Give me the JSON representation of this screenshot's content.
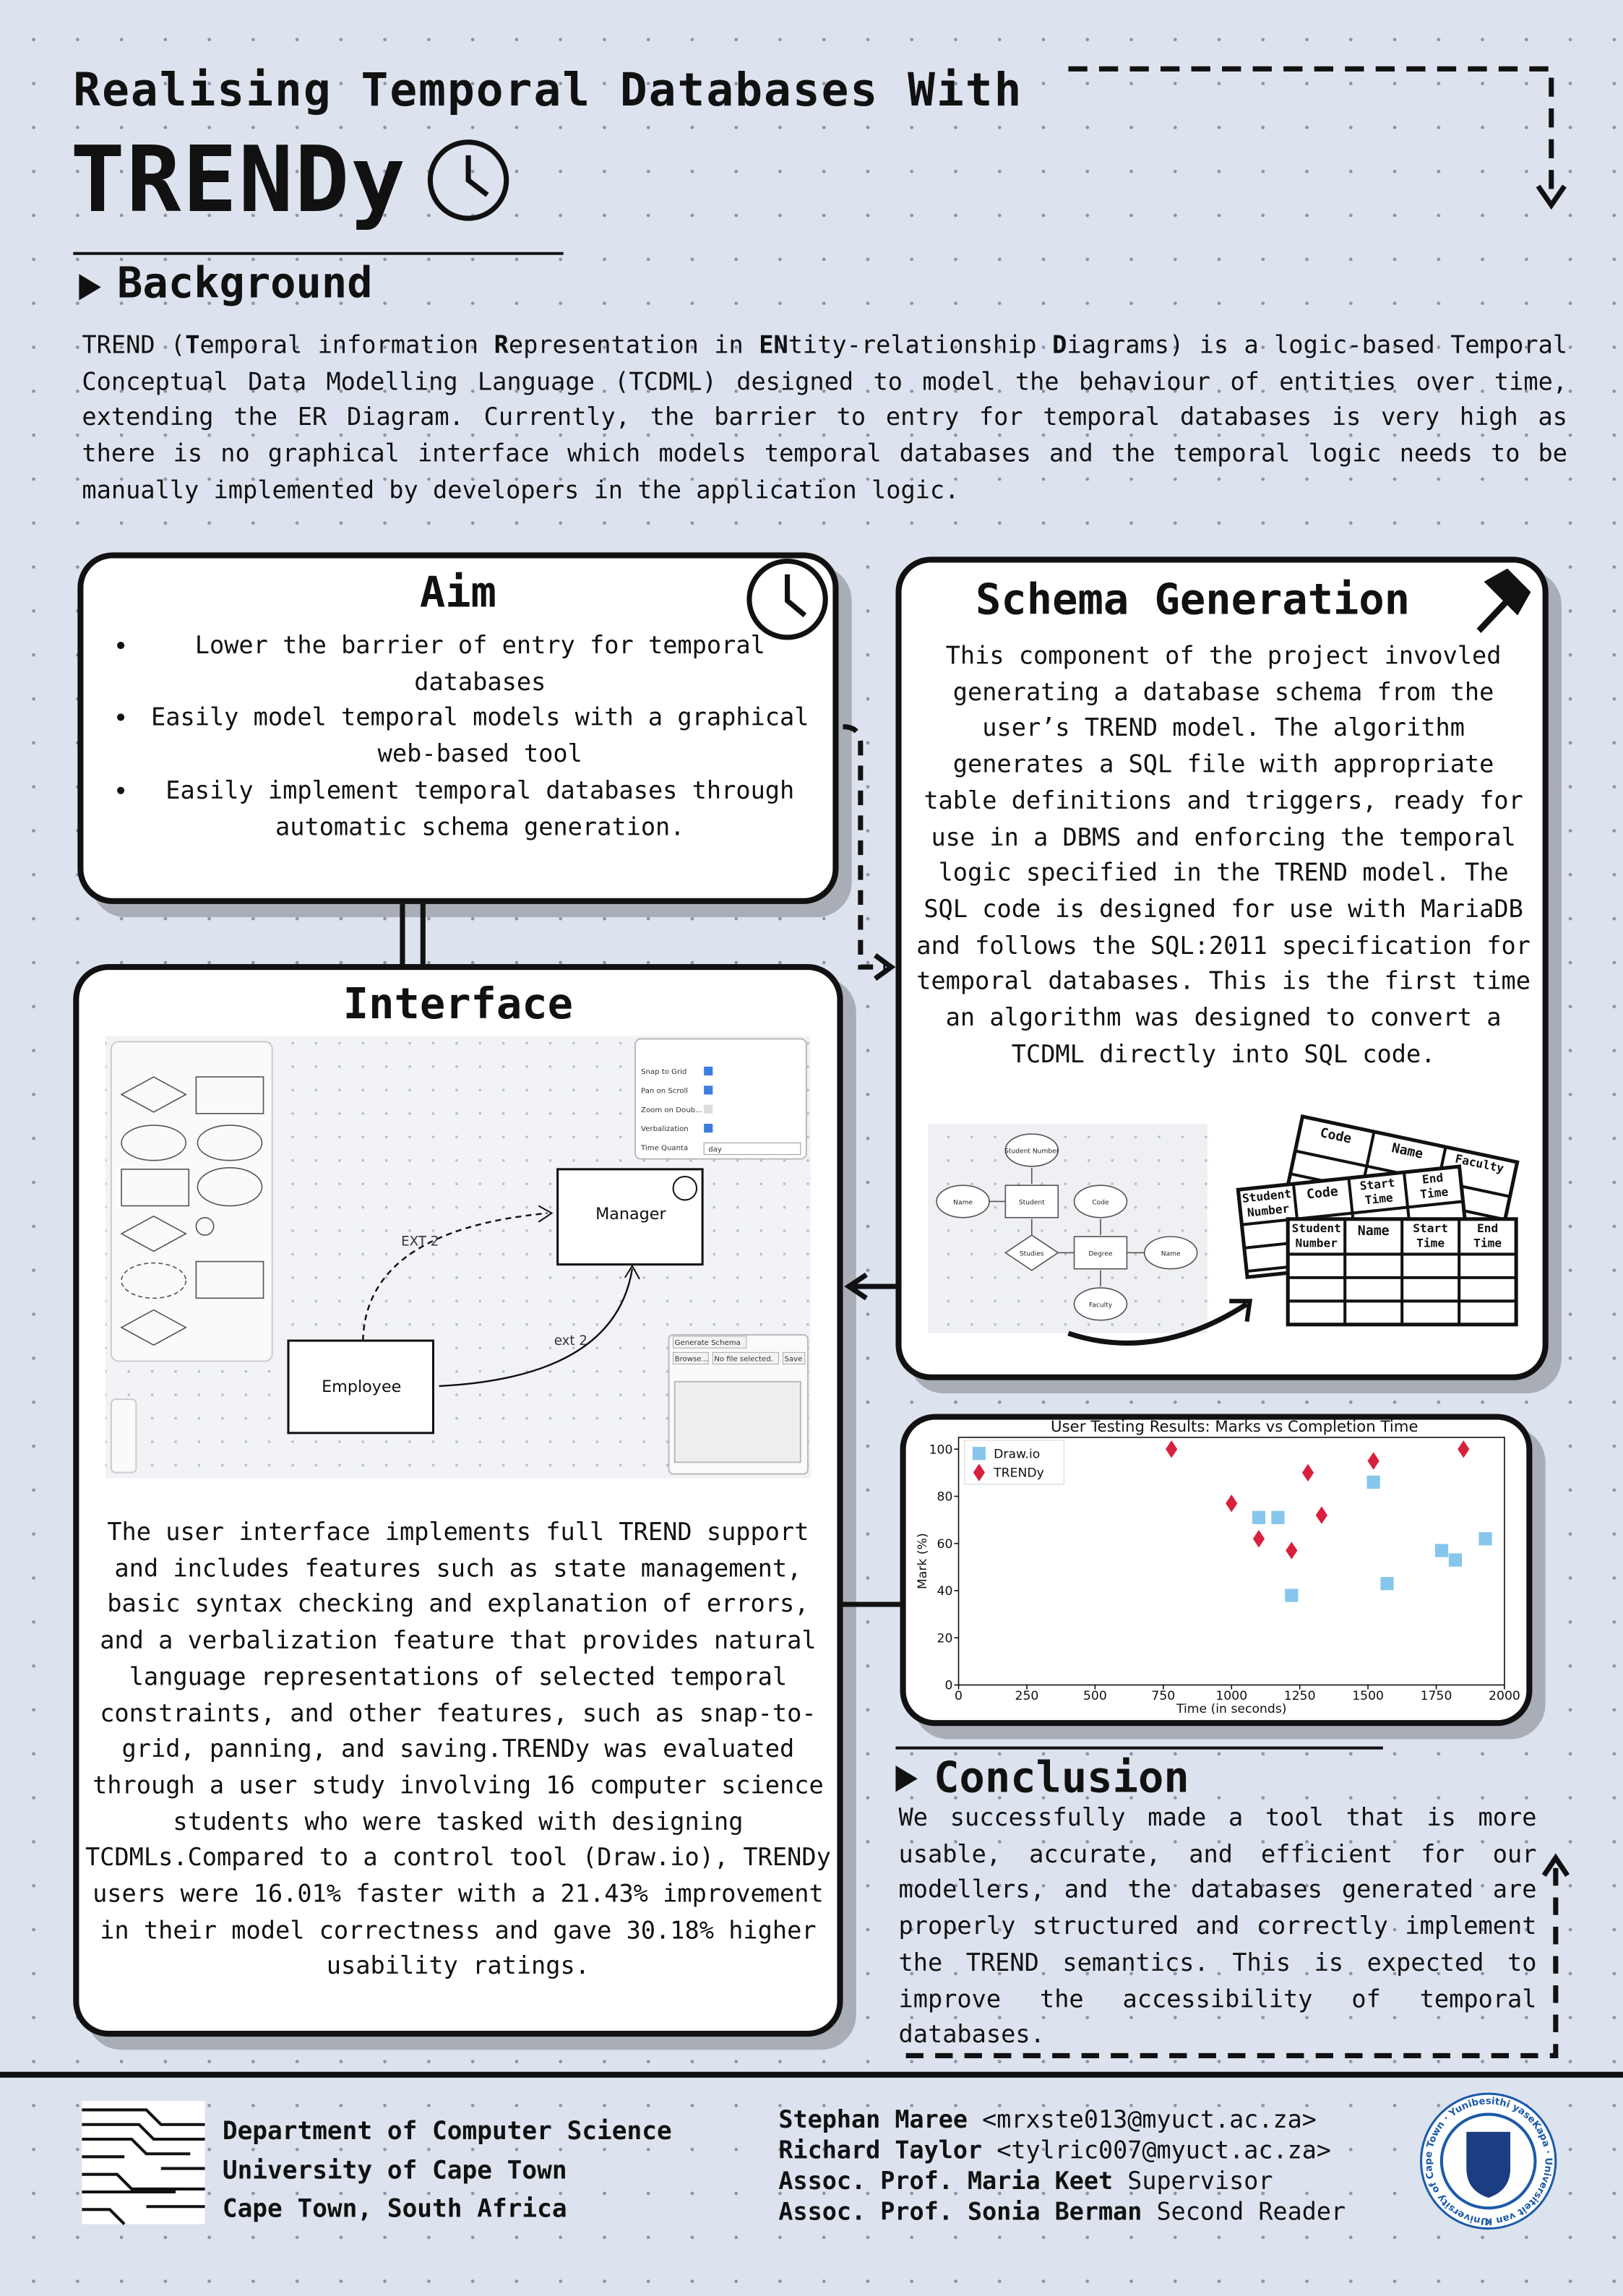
{
  "header": {
    "title_line1": "Realising Temporal Databases With",
    "title_line2": "TRENDy"
  },
  "background": {
    "heading": "Background",
    "segments": [
      {
        "text": "TREND (",
        "bold": false
      },
      {
        "text": "T",
        "bold": true
      },
      {
        "text": "emporal information ",
        "bold": false
      },
      {
        "text": "R",
        "bold": true
      },
      {
        "text": "epresentation in ",
        "bold": false
      },
      {
        "text": "EN",
        "bold": true
      },
      {
        "text": "tity-relationship ",
        "bold": false
      },
      {
        "text": "D",
        "bold": true
      },
      {
        "text": "iagrams) is a logic-based Temporal Conceptual Data Modelling Language (TCDML) designed to model the behaviour of entities over time, extending the ER Diagram. Currently, the barrier to entry for temporal databases is very high as there is no graphical interface which models temporal databases and the temporal logic needs to be manually implemented by developers in the application logic.",
        "bold": false
      }
    ]
  },
  "aim": {
    "heading": "Aim",
    "items": [
      "Lower the barrier of entry for temporal databases",
      "Easily model temporal models with a graphical web-based tool",
      "Easily implement temporal databases through automatic schema generation."
    ]
  },
  "schema": {
    "heading": "Schema Generation",
    "text": "This component of the project invovled generating a database schema from the user’s TREND model. The algorithm generates a SQL file with appropriate table definitions and triggers, ready for use in a DBMS and enforcing the temporal logic specified in the TREND model. The SQL code is designed for use with MariaDB and follows the SQL:2011 specification for temporal databases. This is the first time an algorithm was designed to convert a TCDML directly into SQL code.",
    "er_labels": [
      "Student Number",
      "Name",
      "Student",
      "Code",
      "Studies",
      "Degree",
      "Name",
      "Faculty"
    ],
    "tables": [
      [
        "Code",
        "Name",
        "Faculty"
      ],
      [
        "Student Number",
        "Code",
        "Start Time",
        "End Time"
      ],
      [
        "Student Number",
        "Name",
        "Start Time",
        "End Time"
      ]
    ]
  },
  "interface": {
    "heading": "Interface",
    "text": "The user interface implements full TREND support and includes features such as state management, basic syntax checking and explanation of errors, and a verbalization feature that provides natural language representations of selected temporal constraints, and other features, such as snap-to-grid, panning, and saving.TRENDy was evaluated through a user study involving 16 computer science students who were tasked with designing TCDMLs.Compared to a control tool (Draw.io), TRENDy users were 16.01% faster with a 21.43% improvement in their model correctness and gave 30.18% higher usability ratings.",
    "screenshot": {
      "nodes": [
        "Manager",
        "Employee"
      ],
      "edges": [
        "EXT 2",
        "ext 2"
      ],
      "settings": [
        "Snap to Grid",
        "Pan on Scroll",
        "Zoom on Doub...",
        "Verbalization",
        "Time Quanta"
      ],
      "quanta": "day",
      "buttons": [
        "Generate Schema",
        "Browse...",
        "No file selected.",
        "Save"
      ]
    }
  },
  "chart_data": {
    "type": "scatter",
    "title": "User Testing Results: Marks vs Completion Time",
    "x_label": "Time (in seconds)",
    "y_label": "Mark (%)",
    "xlim": [
      0,
      2000
    ],
    "ylim": [
      0,
      105
    ],
    "xticks": [
      0,
      250,
      500,
      750,
      1000,
      1250,
      1500,
      1750,
      2000
    ],
    "yticks": [
      0,
      20,
      40,
      60,
      80,
      100
    ],
    "legend": "upper left",
    "series": [
      {
        "name": "Draw.io",
        "color": "#87c6ec",
        "marker": "square",
        "x": [
          1100,
          1170,
          1220,
          1520,
          1570,
          1770,
          1820,
          1930
        ],
        "values": [
          71,
          71,
          38,
          86,
          43,
          57,
          53,
          62
        ]
      },
      {
        "name": "TRENDy",
        "color": "#d81f3c",
        "marker": "diamond",
        "x": [
          780,
          1000,
          1100,
          1220,
          1280,
          1330,
          1520,
          1850
        ],
        "values": [
          100,
          77,
          62,
          57,
          90,
          72,
          95,
          100
        ]
      }
    ]
  },
  "conclusion": {
    "heading": "Conclusion",
    "text": "We successfully made a tool that is more usable, accurate, and efficient for our modellers, and the databases generated are properly structured and correctly implement the TREND semantics. This is expected to improve the accessibility of temporal databases."
  },
  "footer": {
    "department": [
      "Department of Computer Science",
      "University of Cape Town",
      "Cape Town, South Africa"
    ],
    "authors": [
      {
        "name": "Stephan Maree",
        "detail": "<mrxste013@myuct.ac.za>"
      },
      {
        "name": "Richard Taylor",
        "detail": "<tylric007@myuct.ac.za>"
      },
      {
        "name": "Assoc. Prof. Maria Keet",
        "detail": "Supervisor"
      },
      {
        "name": "Assoc. Prof. Sonia Berman",
        "detail": "Second Reader"
      }
    ],
    "logo_text": "University of Cape Town · Yunibesithi yaseKapa · Universiteit van Kaapstad ·"
  }
}
